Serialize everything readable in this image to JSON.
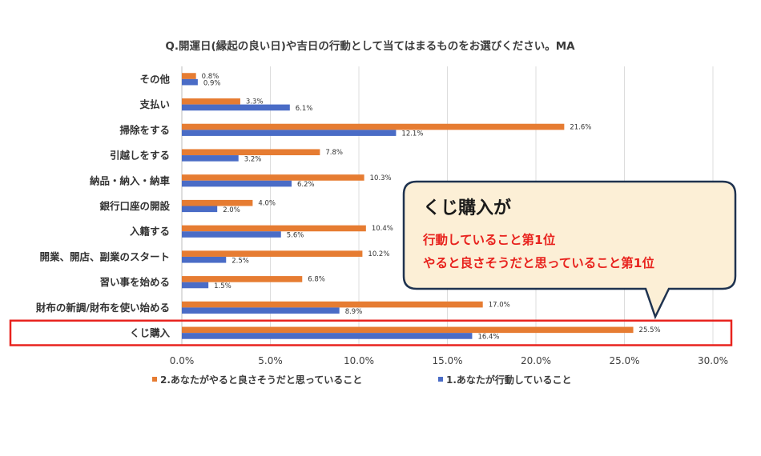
{
  "chart_data": {
    "type": "bar",
    "orientation": "horizontal",
    "title": "Q.開運日(縁起の良い日)や吉日の行動として当てはまるものをお選びください。MA",
    "categories": [
      "その他",
      "支払い",
      "掃除をする",
      "引越しをする",
      "納品・納入・納車",
      "銀行口座の開設",
      "入籍する",
      "開業、開店、副業のスタート",
      "習い事を始める",
      "財布の新調/財布を使い始める",
      "くじ購入"
    ],
    "series": [
      {
        "name": "2.あなたがやると良さそうだと思っていること",
        "color": "#e67c32",
        "values": [
          0.8,
          3.3,
          21.6,
          7.8,
          10.3,
          4.0,
          10.4,
          10.2,
          6.8,
          17.0,
          25.5
        ],
        "labels": [
          "0.8%",
          "3.3%",
          "21.6%",
          "7.8%",
          "10.3%",
          "4.0%",
          "10.4%",
          "10.2%",
          "6.8%",
          "17.0%",
          "25.5%"
        ]
      },
      {
        "name": "1.あなたが行動していること",
        "color": "#4a6cc6",
        "values": [
          0.9,
          6.1,
          12.1,
          3.2,
          6.2,
          2.0,
          5.6,
          2.5,
          1.5,
          8.9,
          16.4
        ],
        "labels": [
          "0.9%",
          "6.1%",
          "12.1%",
          "3.2%",
          "6.2%",
          "2.0%",
          "5.6%",
          "2.5%",
          "1.5%",
          "8.9%",
          "16.4%"
        ]
      }
    ],
    "xlim": [
      0,
      30
    ],
    "xticks": [
      "0.0%",
      "5.0%",
      "10.0%",
      "15.0%",
      "20.0%",
      "25.0%",
      "30.0%"
    ],
    "grid": true,
    "legend_position": "bottom",
    "highlight_category": "くじ購入",
    "highlight_color": "#e8231e"
  },
  "callout": {
    "title": "くじ購入が",
    "lines": [
      "行動していること第1位",
      "やると良さそうだと思っていること第1位"
    ],
    "fill": "#fcefd6",
    "border": "#1f3350"
  }
}
